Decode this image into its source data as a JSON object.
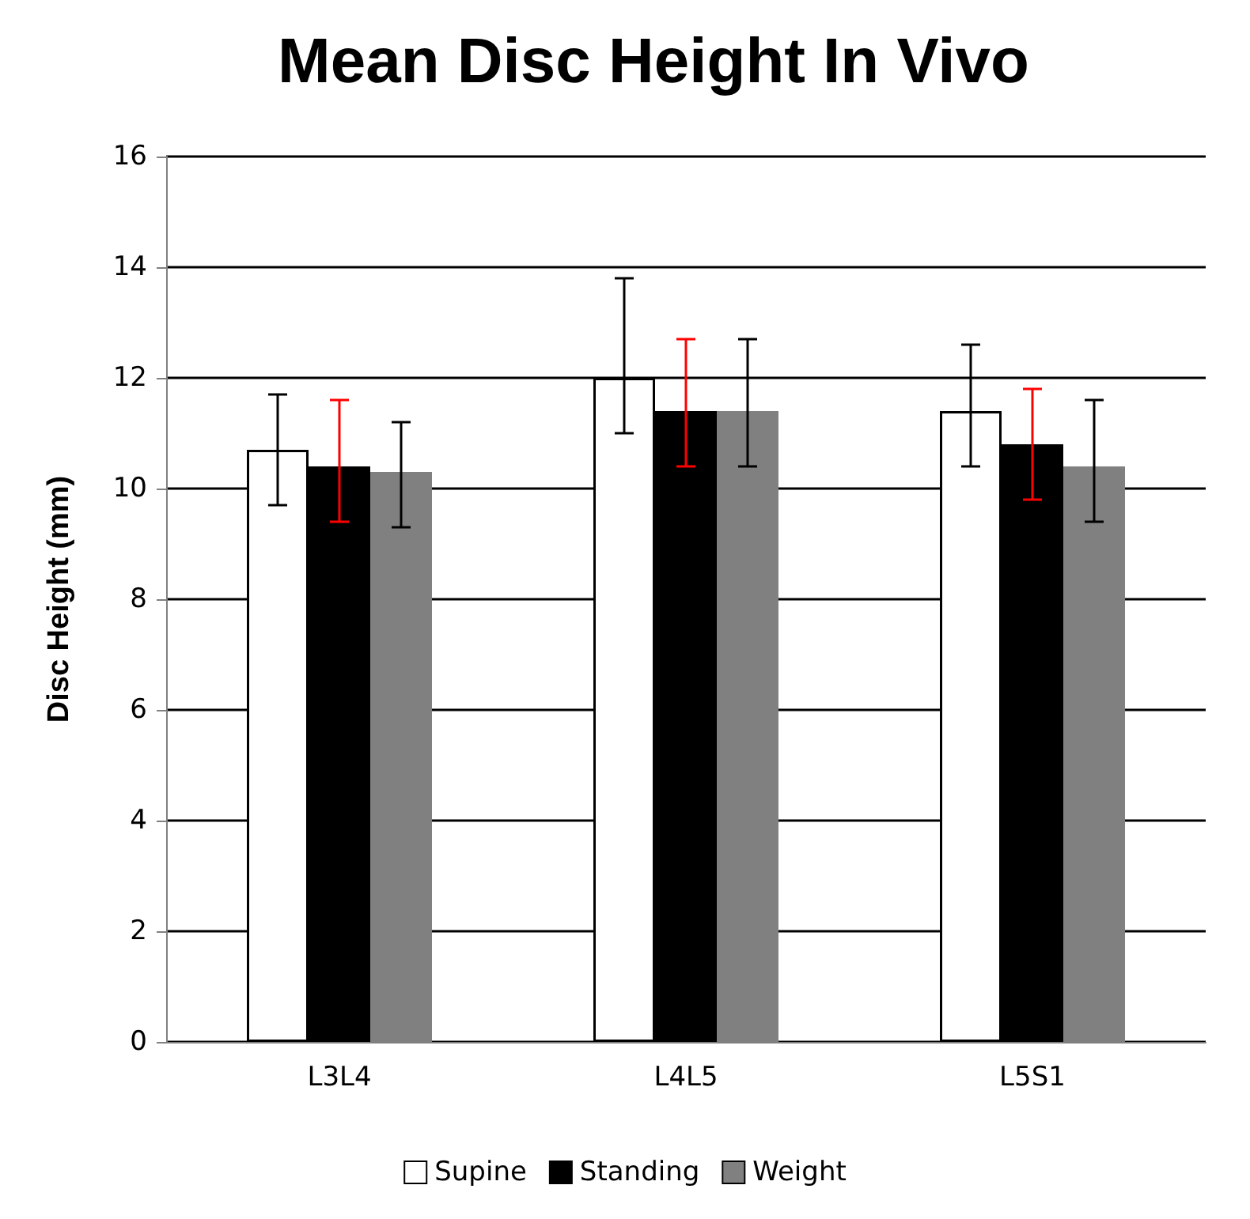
{
  "chart_data": {
    "type": "bar",
    "title": "Mean Disc Height In Vivo",
    "ylabel": "Disc Height (mm)",
    "categories": [
      "L3L4",
      "L4L5",
      "L5S1"
    ],
    "series": [
      {
        "name": "Supine",
        "color": "#ffffff",
        "values": [
          10.7,
          12.0,
          11.4
        ],
        "errors": [
          [
            9.7,
            11.7
          ],
          [
            11.0,
            13.8
          ],
          [
            10.4,
            12.6
          ]
        ]
      },
      {
        "name": "Standing",
        "color": "#000000",
        "values": [
          10.4,
          11.4,
          10.8
        ],
        "errors": [
          [
            9.4,
            11.6
          ],
          [
            10.4,
            12.7
          ],
          [
            9.8,
            11.8
          ]
        ]
      },
      {
        "name": "Weight",
        "color": "#808080",
        "values": [
          10.3,
          11.4,
          10.4
        ],
        "errors": [
          [
            9.3,
            11.2
          ],
          [
            10.4,
            12.7
          ],
          [
            9.4,
            11.6
          ]
        ]
      }
    ],
    "ylim": [
      0,
      16
    ],
    "yticks": [
      0,
      2,
      4,
      6,
      8,
      10,
      12,
      14,
      16
    ],
    "grid": "y",
    "legend": "bottom"
  }
}
